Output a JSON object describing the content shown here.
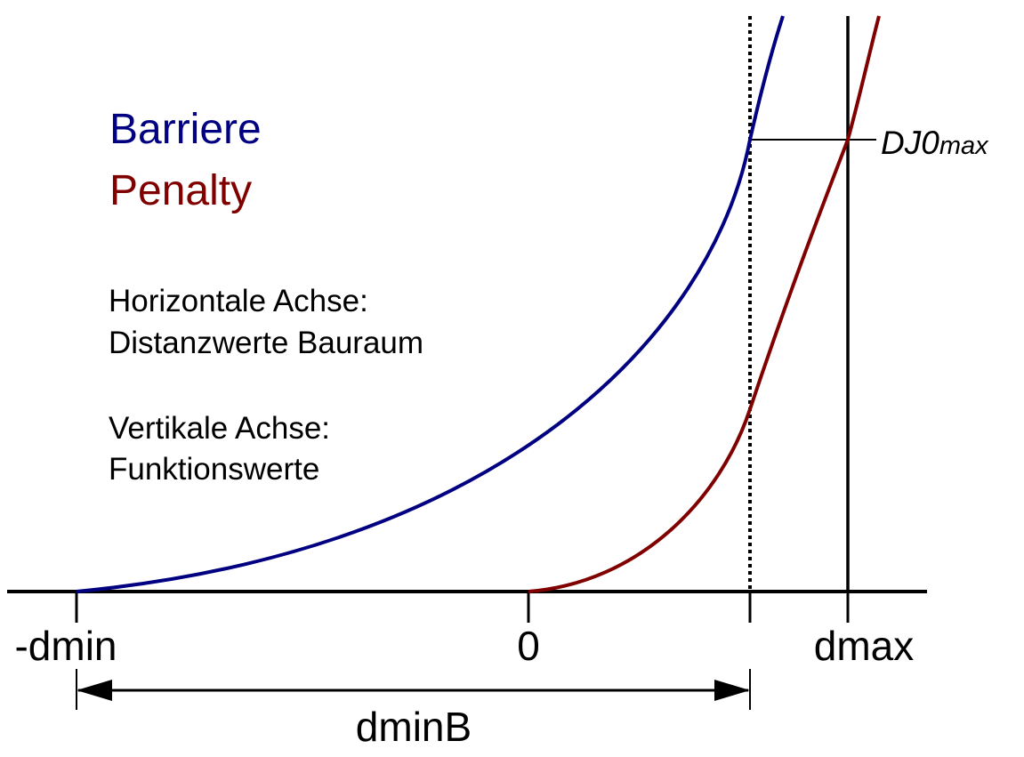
{
  "legend": {
    "barrier": "Barriere",
    "penalty": "Penalty"
  },
  "notes": {
    "horizontal_title": "Horizontale Achse:",
    "horizontal_desc": "Distanzwerte Bauraum",
    "vertical_title": "Vertikale Achse:",
    "vertical_desc": "Funktionswerte"
  },
  "axis_labels": {
    "neg_dmin": "-dmin",
    "zero": "0",
    "dmax": "dmax",
    "dminB": "dminB"
  },
  "threshold_label": {
    "main": "DJ0",
    "sub": "max"
  },
  "colors": {
    "barrier": "#000080",
    "penalty": "#800000",
    "axis": "#000000"
  }
}
